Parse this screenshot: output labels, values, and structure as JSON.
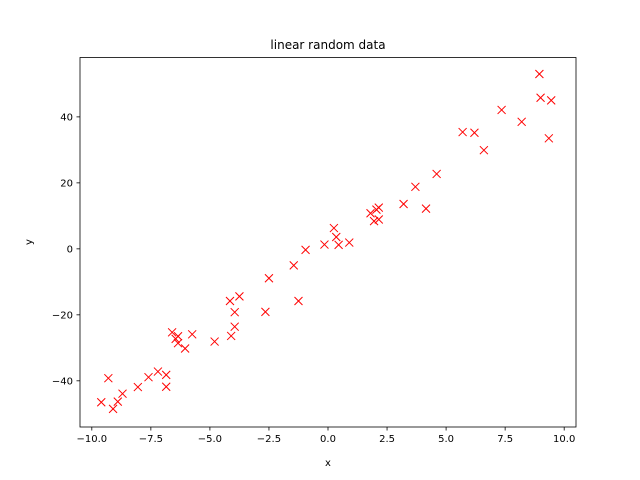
{
  "chart_data": {
    "type": "scatter",
    "title": "linear random data",
    "xlabel": "x",
    "ylabel": "y",
    "xlim": [
      -10.5,
      10.5
    ],
    "ylim": [
      -54,
      58
    ],
    "x_ticks": [
      -10.0,
      -7.5,
      -5.0,
      -2.5,
      0.0,
      2.5,
      5.0,
      7.5,
      10.0
    ],
    "x_tick_labels": [
      "−10.0",
      "−7.5",
      "−5.0",
      "−2.5",
      "0.0",
      "2.5",
      "5.0",
      "7.5",
      "10.0"
    ],
    "y_ticks": [
      -40,
      -20,
      0,
      20,
      40
    ],
    "y_tick_labels": [
      "−40",
      "−20",
      "0",
      "20",
      "40"
    ],
    "grid": false,
    "marker": "x",
    "color": "#ff0000",
    "points": [
      [
        -9.6,
        -46.5
      ],
      [
        -9.3,
        -39.2
      ],
      [
        -9.1,
        -48.5
      ],
      [
        -8.9,
        -46.3
      ],
      [
        -8.7,
        -43.9
      ],
      [
        -8.05,
        -41.9
      ],
      [
        -7.6,
        -38.9
      ],
      [
        -7.2,
        -37.2
      ],
      [
        -6.85,
        -41.8
      ],
      [
        -6.85,
        -38.2
      ],
      [
        -6.6,
        -25.3
      ],
      [
        -6.45,
        -27.3
      ],
      [
        -6.35,
        -28.6
      ],
      [
        -6.35,
        -26.5
      ],
      [
        -6.05,
        -30.2
      ],
      [
        -5.75,
        -25.9
      ],
      [
        -4.8,
        -28.1
      ],
      [
        -4.15,
        -15.8
      ],
      [
        -4.1,
        -26.4
      ],
      [
        -3.95,
        -19.2
      ],
      [
        -3.95,
        -23.6
      ],
      [
        -3.75,
        -14.4
      ],
      [
        -2.65,
        -19.1
      ],
      [
        -2.5,
        -8.9
      ],
      [
        -1.45,
        -5.0
      ],
      [
        -1.25,
        -15.8
      ],
      [
        -0.95,
        -0.3
      ],
      [
        -0.15,
        1.3
      ],
      [
        0.25,
        6.3
      ],
      [
        0.35,
        3.6
      ],
      [
        0.45,
        1.2
      ],
      [
        0.9,
        1.9
      ],
      [
        1.8,
        10.8
      ],
      [
        1.95,
        8.4
      ],
      [
        2.05,
        11.9
      ],
      [
        2.15,
        8.9
      ],
      [
        2.15,
        12.5
      ],
      [
        3.2,
        13.6
      ],
      [
        3.7,
        18.8
      ],
      [
        4.15,
        12.2
      ],
      [
        4.6,
        22.7
      ],
      [
        5.7,
        35.4
      ],
      [
        6.2,
        35.2
      ],
      [
        6.6,
        29.9
      ],
      [
        7.35,
        42.1
      ],
      [
        8.2,
        38.5
      ],
      [
        8.95,
        53.0
      ],
      [
        9.0,
        45.8
      ],
      [
        9.35,
        33.5
      ],
      [
        9.45,
        45.0
      ]
    ]
  }
}
